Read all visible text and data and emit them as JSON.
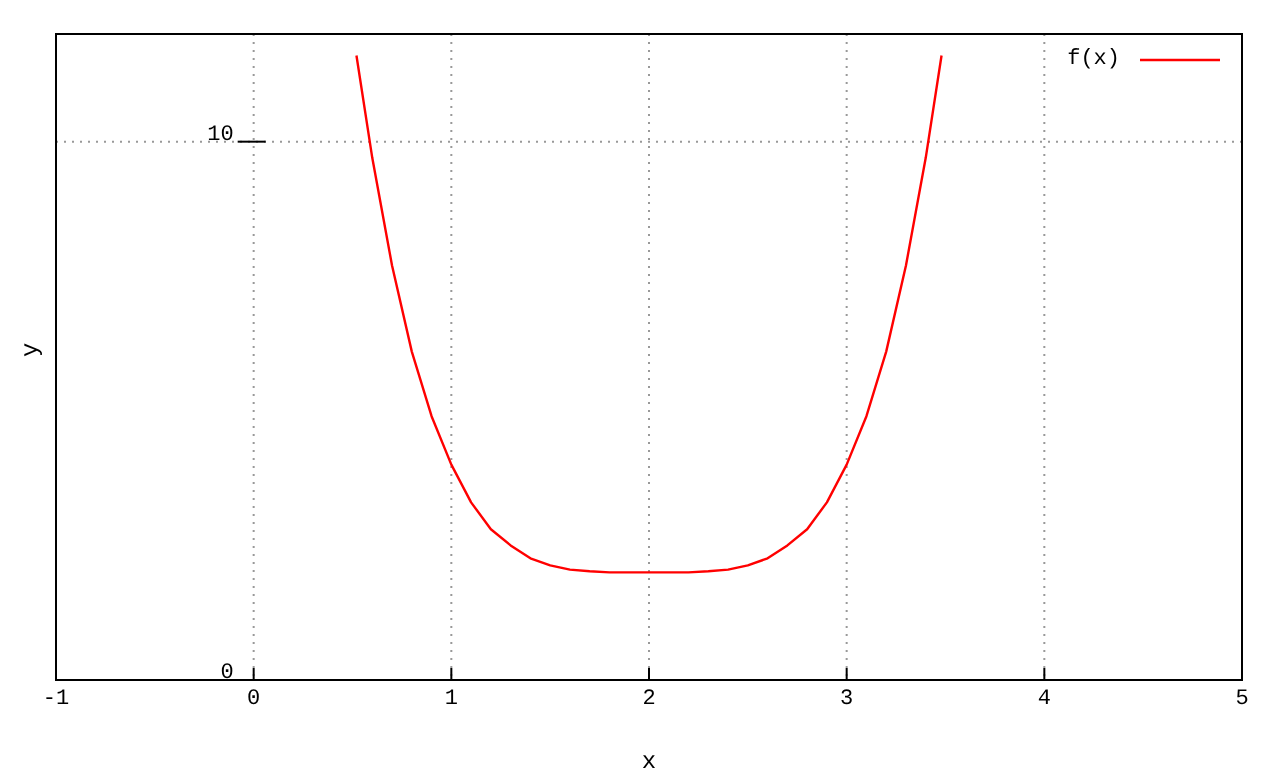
{
  "chart_data": {
    "type": "line",
    "xlabel": "x",
    "ylabel": "y",
    "xlim": [
      -1,
      5
    ],
    "ylim": [
      0,
      12
    ],
    "xticks": [
      -1,
      0,
      1,
      2,
      3,
      4,
      5
    ],
    "yticks": [
      0,
      10
    ],
    "grid": true,
    "legend": "top right",
    "marker": "none",
    "line_style": "solid",
    "x": [
      0.52,
      0.6,
      0.7,
      0.8,
      0.9,
      1.0,
      1.1,
      1.2,
      1.3,
      1.4,
      1.5,
      1.6,
      1.7,
      1.8,
      2.0,
      2.2,
      2.3,
      2.4,
      2.5,
      2.6,
      2.7,
      2.8,
      2.9,
      3.0,
      3.1,
      3.2,
      3.3,
      3.4,
      3.48
    ],
    "series": [
      {
        "name": "f(x)",
        "color": "#ff0000",
        "values": [
          11.6,
          9.7,
          7.7,
          6.1,
          4.9,
          4.0,
          3.3,
          2.8,
          2.5,
          2.26,
          2.13,
          2.05,
          2.02,
          2.0,
          2.0,
          2.0,
          2.02,
          2.05,
          2.13,
          2.26,
          2.5,
          2.8,
          3.3,
          4.0,
          4.9,
          6.1,
          7.7,
          9.7,
          11.6
        ]
      }
    ]
  }
}
